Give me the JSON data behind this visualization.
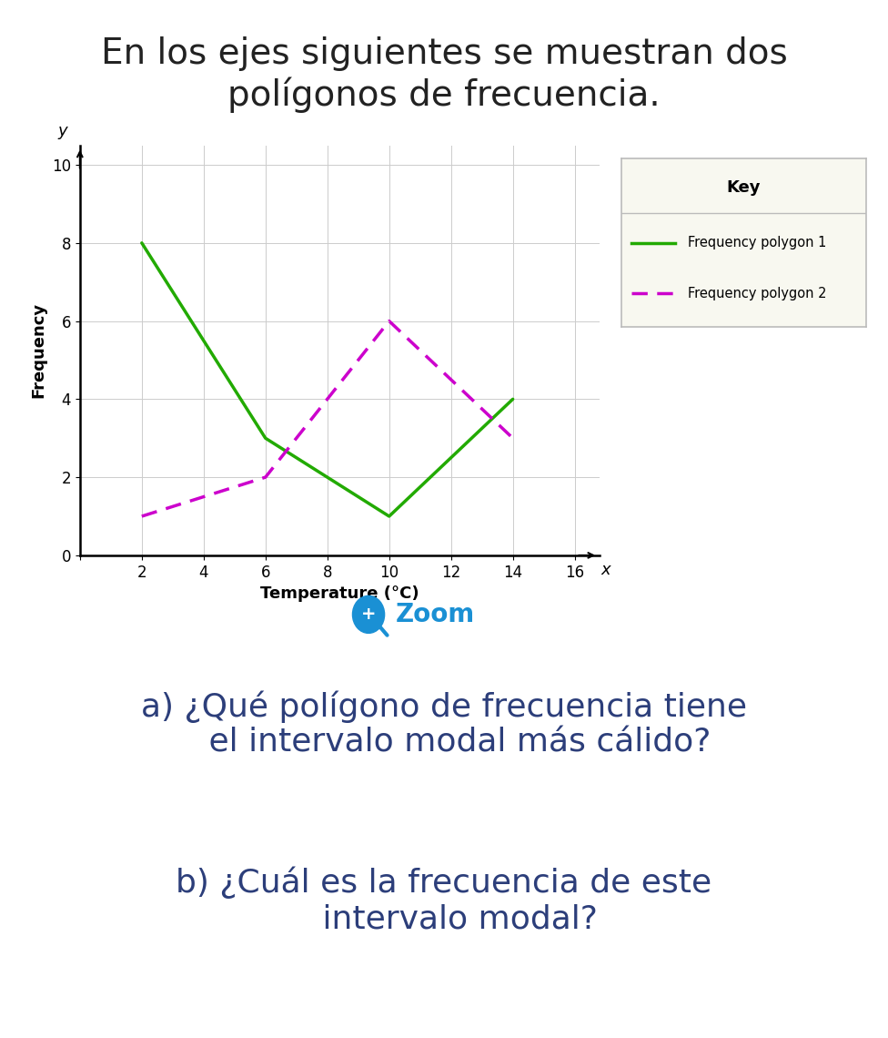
{
  "title_line1": "En los ejes siguientes se muestran dos",
  "title_line2": "polígonos de frecuencia.",
  "title_color": "#222222",
  "title_fontsize": 28,
  "background_color": "#ffffff",
  "poly1_x": [
    2,
    6,
    8,
    10,
    14
  ],
  "poly1_y": [
    8,
    3,
    2,
    1,
    4
  ],
  "poly1_color": "#22aa00",
  "poly1_linewidth": 2.5,
  "poly1_label": "Frequency polygon 1",
  "poly2_x": [
    2,
    6,
    8,
    10,
    12,
    14
  ],
  "poly2_y": [
    1,
    2,
    4,
    6,
    4.5,
    3
  ],
  "poly2_color": "#cc00cc",
  "poly2_linewidth": 2.5,
  "poly2_label": "Frequency polygon 2",
  "xlabel": "Temperature (°C)",
  "ylabel": "Frequency",
  "xlabel_fontsize": 13,
  "ylabel_fontsize": 13,
  "xlim": [
    0,
    16.8
  ],
  "ylim": [
    0,
    10.5
  ],
  "xticks": [
    0,
    2,
    4,
    6,
    8,
    10,
    12,
    14,
    16
  ],
  "yticks": [
    0,
    2,
    4,
    6,
    8,
    10
  ],
  "tick_fontsize": 12,
  "key_title": "Key",
  "zoom_text": "Zoom",
  "zoom_color": "#1a90d4",
  "question_a": "a) ¿Qué polígono de frecuencia tiene\n   el intervalo modal más cálido?",
  "question_b": "b) ¿Cuál es la frecuencia de este\n   intervalo modal?",
  "question_color": "#2c3e7a",
  "question_fontsize": 26
}
